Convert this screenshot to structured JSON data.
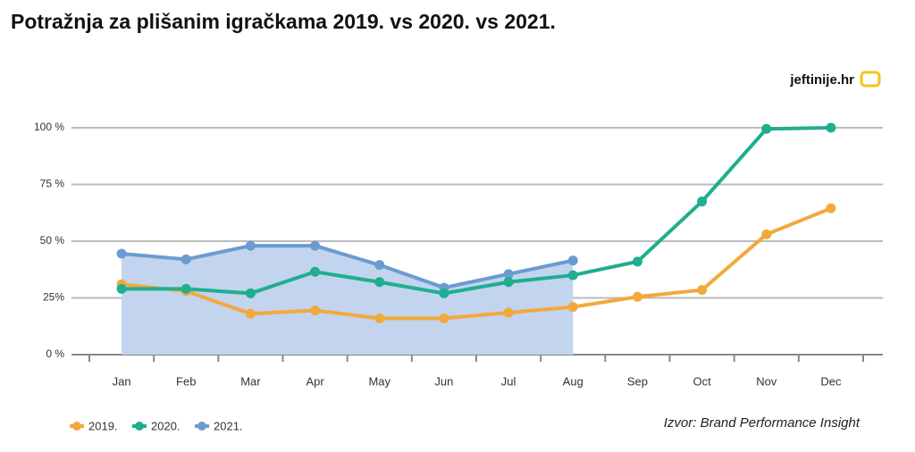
{
  "chart_data": {
    "type": "line",
    "title": "Potražnja za plišanim igračkama 2019. vs 2020. vs 2021.",
    "logo": "jeftinije.hr",
    "source": "Izvor: Brand Performance Insight",
    "categories": [
      "Jan",
      "Feb",
      "Mar",
      "Apr",
      "May",
      "Jun",
      "Jul",
      "Aug",
      "Sep",
      "Oct",
      "Nov",
      "Dec"
    ],
    "series": [
      {
        "name": "2019.",
        "color": "#f2a93b",
        "values": [
          31,
          28,
          18,
          19.5,
          16,
          16,
          18.5,
          21,
          25.5,
          28.5,
          53,
          64.5
        ]
      },
      {
        "name": "2020.",
        "color": "#1fae8f",
        "values": [
          29,
          29,
          27,
          36.5,
          32,
          27,
          32,
          35,
          41,
          67.5,
          99.5,
          100
        ]
      },
      {
        "name": "2021.",
        "color": "#6b9bd1",
        "area_color": "#c2d4ee",
        "values": [
          44.5,
          42,
          48,
          48,
          39.5,
          29.5,
          35.5,
          41.5,
          null,
          null,
          null,
          null
        ]
      }
    ],
    "ylim": [
      0,
      100
    ],
    "yticks": [
      {
        "value": 0,
        "label": "0 %"
      },
      {
        "value": 25,
        "label": "25%"
      },
      {
        "value": 50,
        "label": "50 %"
      },
      {
        "value": 75,
        "label": "75 %"
      },
      {
        "value": 100,
        "label": "100 %"
      }
    ],
    "grid": true
  }
}
